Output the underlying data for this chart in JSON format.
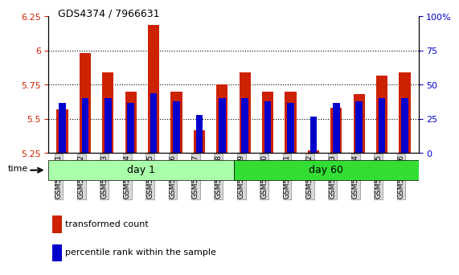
{
  "title": "GDS4374 / 7966631",
  "samples": [
    "GSM586091",
    "GSM586092",
    "GSM586093",
    "GSM586094",
    "GSM586095",
    "GSM586096",
    "GSM586097",
    "GSM586098",
    "GSM586099",
    "GSM586100",
    "GSM586101",
    "GSM586102",
    "GSM586103",
    "GSM586104",
    "GSM586105",
    "GSM586106"
  ],
  "transformed_count": [
    5.57,
    5.98,
    5.84,
    5.7,
    6.19,
    5.7,
    5.42,
    5.75,
    5.84,
    5.7,
    5.7,
    5.27,
    5.58,
    5.68,
    5.82,
    5.84
  ],
  "percentile_rank": [
    37,
    40,
    40,
    37,
    44,
    38,
    28,
    40,
    40,
    38,
    37,
    27,
    37,
    38,
    40,
    40
  ],
  "ylim_left": [
    5.25,
    6.25
  ],
  "ylim_right": [
    0,
    100
  ],
  "yticks_left": [
    5.25,
    5.5,
    5.75,
    6.0,
    6.25
  ],
  "yticks_right": [
    0,
    25,
    50,
    75,
    100
  ],
  "ytick_labels_left": [
    "5.25",
    "5.5",
    "5.75",
    "6",
    "6.25"
  ],
  "ytick_labels_right": [
    "0",
    "25",
    "50",
    "75",
    "100%"
  ],
  "day1_samples": 8,
  "day60_samples": 8,
  "bar_color_red": "#CC2200",
  "bar_color_blue": "#0000CC",
  "day1_label": "day 1",
  "day60_label": "day 60",
  "day1_bg": "#AAFFAA",
  "day60_bg": "#33DD33",
  "time_label": "time",
  "legend1": "transformed count",
  "legend2": "percentile rank within the sample",
  "bar_width": 0.5,
  "base_value": 5.25,
  "percentile_bar_width": 0.3,
  "grid_color": "#888888",
  "xlabel_color": "#444444",
  "tick_color_left": "#CC2200",
  "tick_color_right": "#0000CC"
}
